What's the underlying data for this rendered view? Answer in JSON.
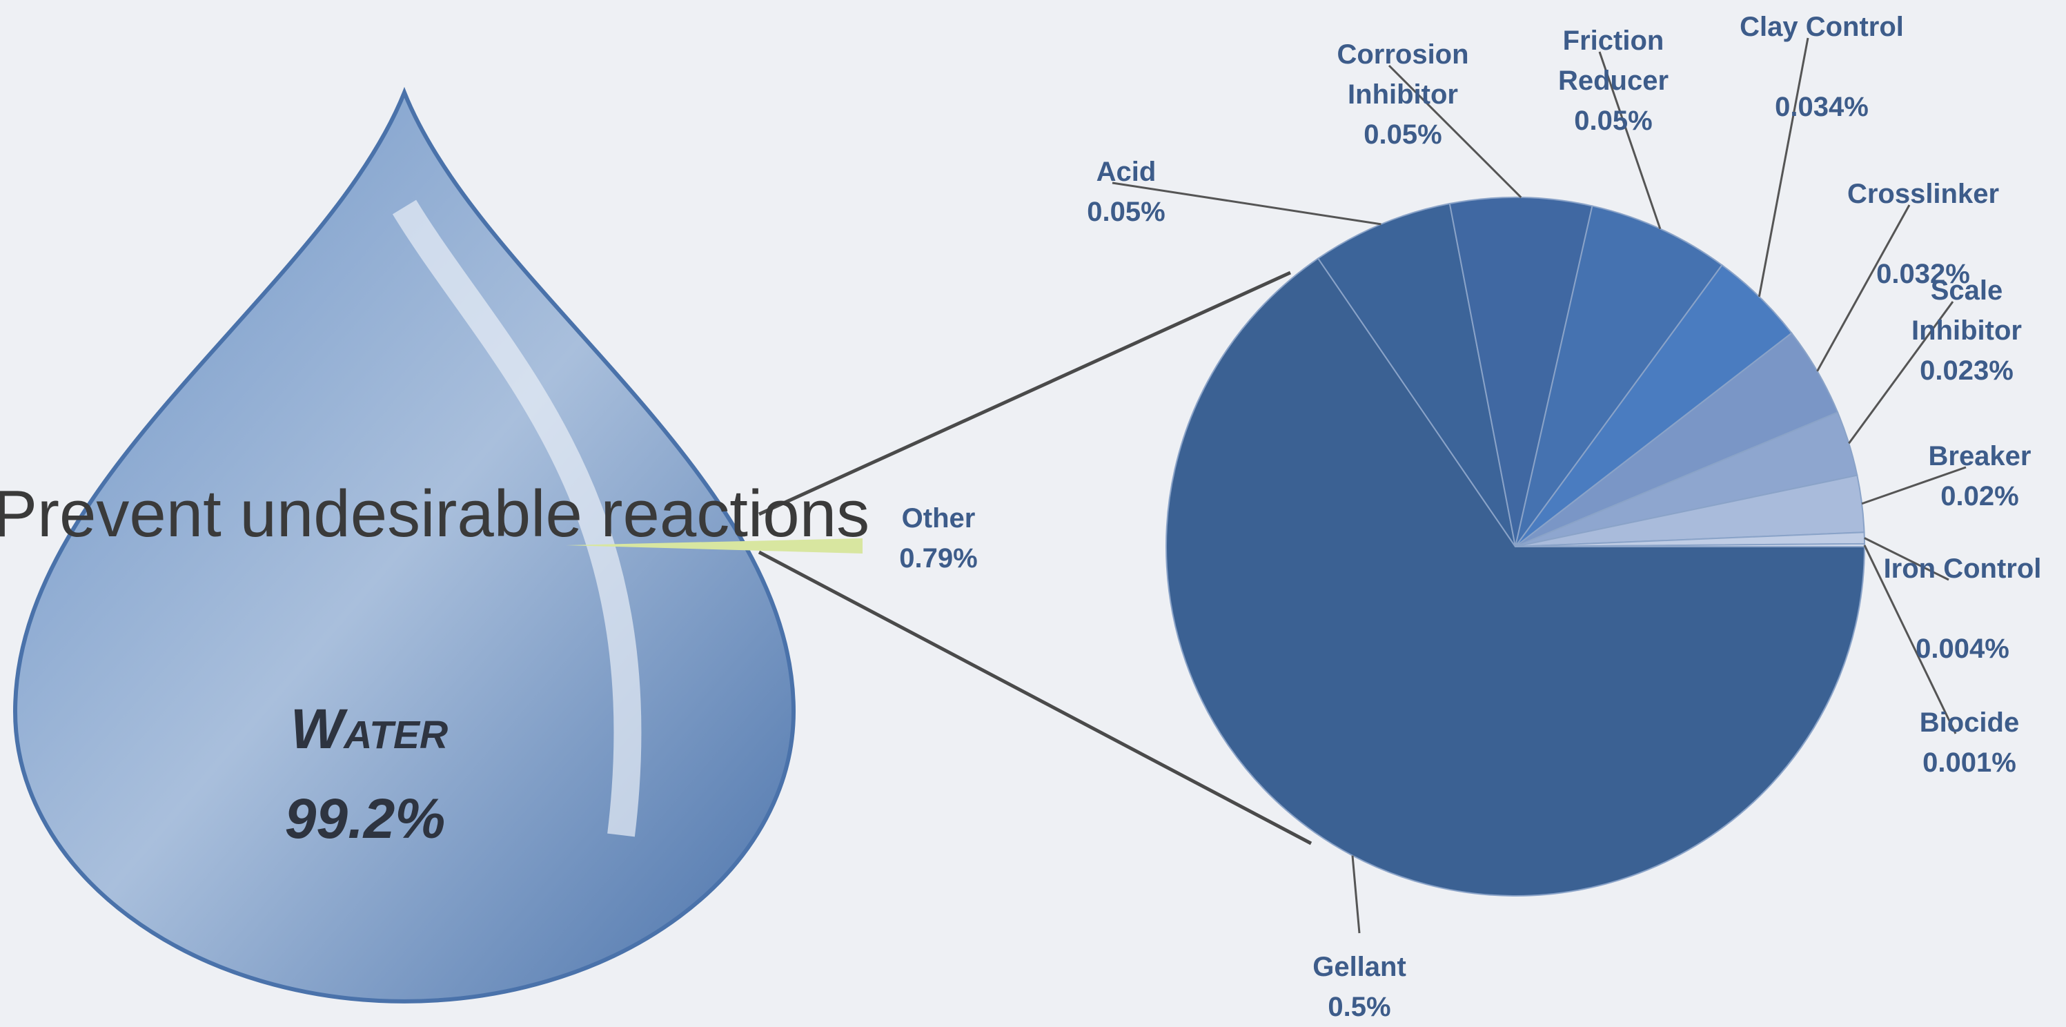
{
  "caption": "Prevent undesirable reactions",
  "chart_data": [
    {
      "type": "drop",
      "categories": [
        "Water",
        "Other"
      ],
      "values": [
        99.2,
        0.79
      ],
      "value_labels": [
        "99.2%",
        "0.79%"
      ],
      "colors": [
        "#4f77b0",
        "#d8e6a0"
      ]
    },
    {
      "type": "pie",
      "categories": [
        "Gellant",
        "Acid",
        "Corrosion Inhibitor",
        "Friction Reducer",
        "Clay Control",
        "Crosslinker",
        "Scale Inhibitor",
        "Breaker",
        "Iron Control",
        "Biocide"
      ],
      "values": [
        0.5,
        0.05,
        0.05,
        0.05,
        0.034,
        0.032,
        0.023,
        0.02,
        0.004,
        0.001
      ],
      "value_labels": [
        "0.5%",
        "0.05%",
        "0.05%",
        "0.05%",
        "0.034%",
        "0.032%",
        "0.023%",
        "0.02%",
        "0.004%",
        "0.001%"
      ],
      "colors": [
        "#3b6193",
        "#3c6499",
        "#4068a2",
        "#4572b0",
        "#4a7cc0",
        "#7a96c6",
        "#8ea6cf",
        "#a9bbdb",
        "#c0cde5",
        "#d4dced"
      ]
    }
  ]
}
